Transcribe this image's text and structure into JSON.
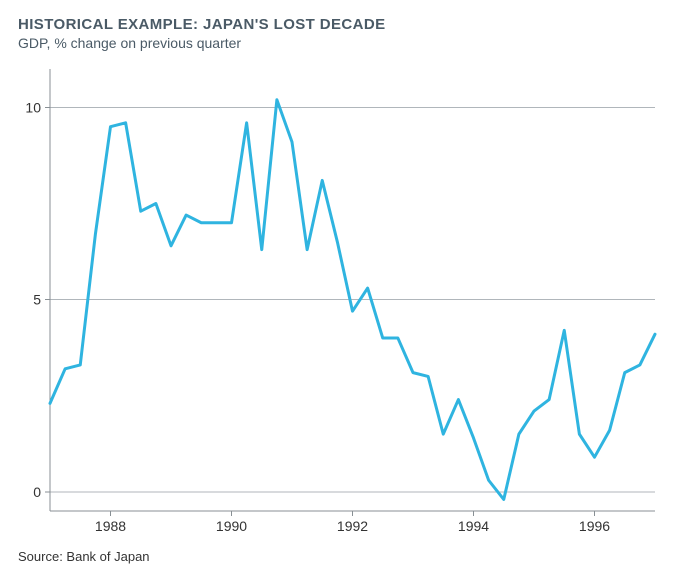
{
  "title": "HISTORICAL EXAMPLE: JAPAN'S LOST DECADE",
  "subtitle": "GDP, % change on previous quarter",
  "source": "Source: Bank of Japan",
  "chart": {
    "type": "line",
    "x_start": 1987.0,
    "x_end": 1997.0,
    "x_ticks": [
      1988,
      1990,
      1992,
      1994,
      1996
    ],
    "y_min": -0.5,
    "y_max": 11.0,
    "y_ticks": [
      0,
      5,
      10
    ],
    "grid_color": "#b0b6bb",
    "axis_color": "#888f94",
    "line_color": "#2fb4e0",
    "line_width": 3,
    "background_color": "#ffffff",
    "label_fontsize": 14,
    "label_color": "#333333",
    "series": [
      {
        "x": 1987.0,
        "y": 2.3
      },
      {
        "x": 1987.25,
        "y": 3.2
      },
      {
        "x": 1987.5,
        "y": 3.3
      },
      {
        "x": 1987.75,
        "y": 6.7
      },
      {
        "x": 1988.0,
        "y": 9.5
      },
      {
        "x": 1988.25,
        "y": 9.6
      },
      {
        "x": 1988.5,
        "y": 7.3
      },
      {
        "x": 1988.75,
        "y": 7.5
      },
      {
        "x": 1989.0,
        "y": 6.4
      },
      {
        "x": 1989.25,
        "y": 7.2
      },
      {
        "x": 1989.5,
        "y": 7.0
      },
      {
        "x": 1989.75,
        "y": 7.0
      },
      {
        "x": 1990.0,
        "y": 7.0
      },
      {
        "x": 1990.25,
        "y": 9.6
      },
      {
        "x": 1990.5,
        "y": 6.3
      },
      {
        "x": 1990.75,
        "y": 10.2
      },
      {
        "x": 1991.0,
        "y": 9.1
      },
      {
        "x": 1991.25,
        "y": 6.3
      },
      {
        "x": 1991.5,
        "y": 8.1
      },
      {
        "x": 1991.75,
        "y": 6.5
      },
      {
        "x": 1992.0,
        "y": 4.7
      },
      {
        "x": 1992.25,
        "y": 5.3
      },
      {
        "x": 1992.5,
        "y": 4.0
      },
      {
        "x": 1992.75,
        "y": 4.0
      },
      {
        "x": 1993.0,
        "y": 3.1
      },
      {
        "x": 1993.25,
        "y": 3.0
      },
      {
        "x": 1993.5,
        "y": 1.5
      },
      {
        "x": 1993.75,
        "y": 2.4
      },
      {
        "x": 1994.0,
        "y": 1.4
      },
      {
        "x": 1994.25,
        "y": 0.3
      },
      {
        "x": 1994.5,
        "y": -0.2
      },
      {
        "x": 1994.75,
        "y": 1.5
      },
      {
        "x": 1995.0,
        "y": 2.1
      },
      {
        "x": 1995.25,
        "y": 2.4
      },
      {
        "x": 1995.5,
        "y": 4.2
      },
      {
        "x": 1995.75,
        "y": 1.5
      },
      {
        "x": 1996.0,
        "y": 0.9
      },
      {
        "x": 1996.25,
        "y": 1.6
      },
      {
        "x": 1996.5,
        "y": 3.1
      },
      {
        "x": 1996.75,
        "y": 3.3
      },
      {
        "x": 1997.0,
        "y": 4.1
      }
    ]
  }
}
